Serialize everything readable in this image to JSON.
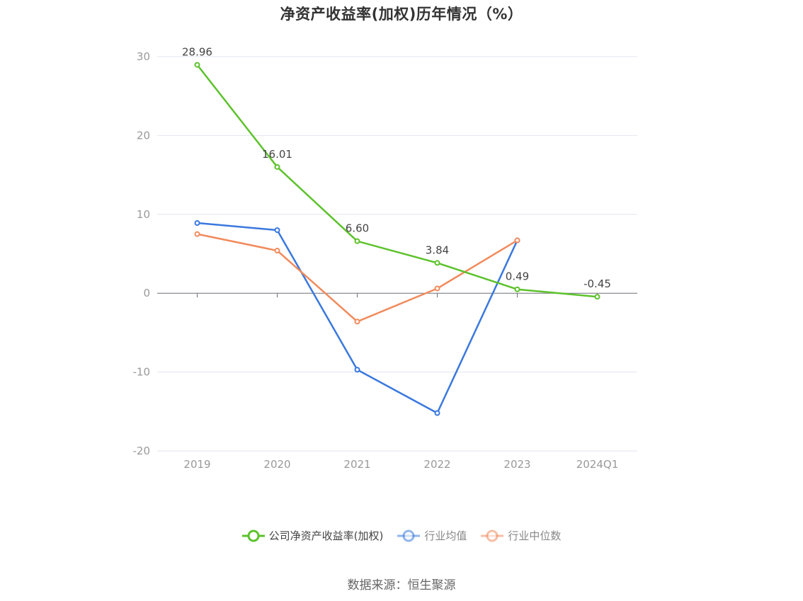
{
  "title": "净资产收益率(加权)历年情况（%）",
  "source": "数据来源：恒生聚源",
  "chart_data": {
    "type": "line",
    "title": "净资产收益率(加权)历年情况（%）",
    "categories": [
      "2019",
      "2020",
      "2021",
      "2022",
      "2023",
      "2024Q1"
    ],
    "ylim": [
      -20,
      30
    ],
    "yticks": [
      30,
      20,
      10,
      0,
      -10,
      -20
    ],
    "grid": true,
    "legend_position": "bottom",
    "series": [
      {
        "name": "公司净资产收益率(加权)",
        "color": "#5cc22b",
        "values": [
          28.96,
          16.01,
          6.6,
          3.84,
          0.49,
          -0.45
        ],
        "labels": [
          "28.96",
          "16.01",
          "6.60",
          "3.84",
          "0.49",
          "-0.45"
        ]
      },
      {
        "name": "行业均值",
        "color": "#3a78de",
        "values": [
          8.9,
          8.0,
          -9.7,
          -15.2,
          6.7,
          null
        ]
      },
      {
        "name": "行业中位数",
        "color": "#f18a5c",
        "values": [
          7.5,
          5.4,
          -3.6,
          0.6,
          6.7,
          null
        ]
      }
    ]
  }
}
